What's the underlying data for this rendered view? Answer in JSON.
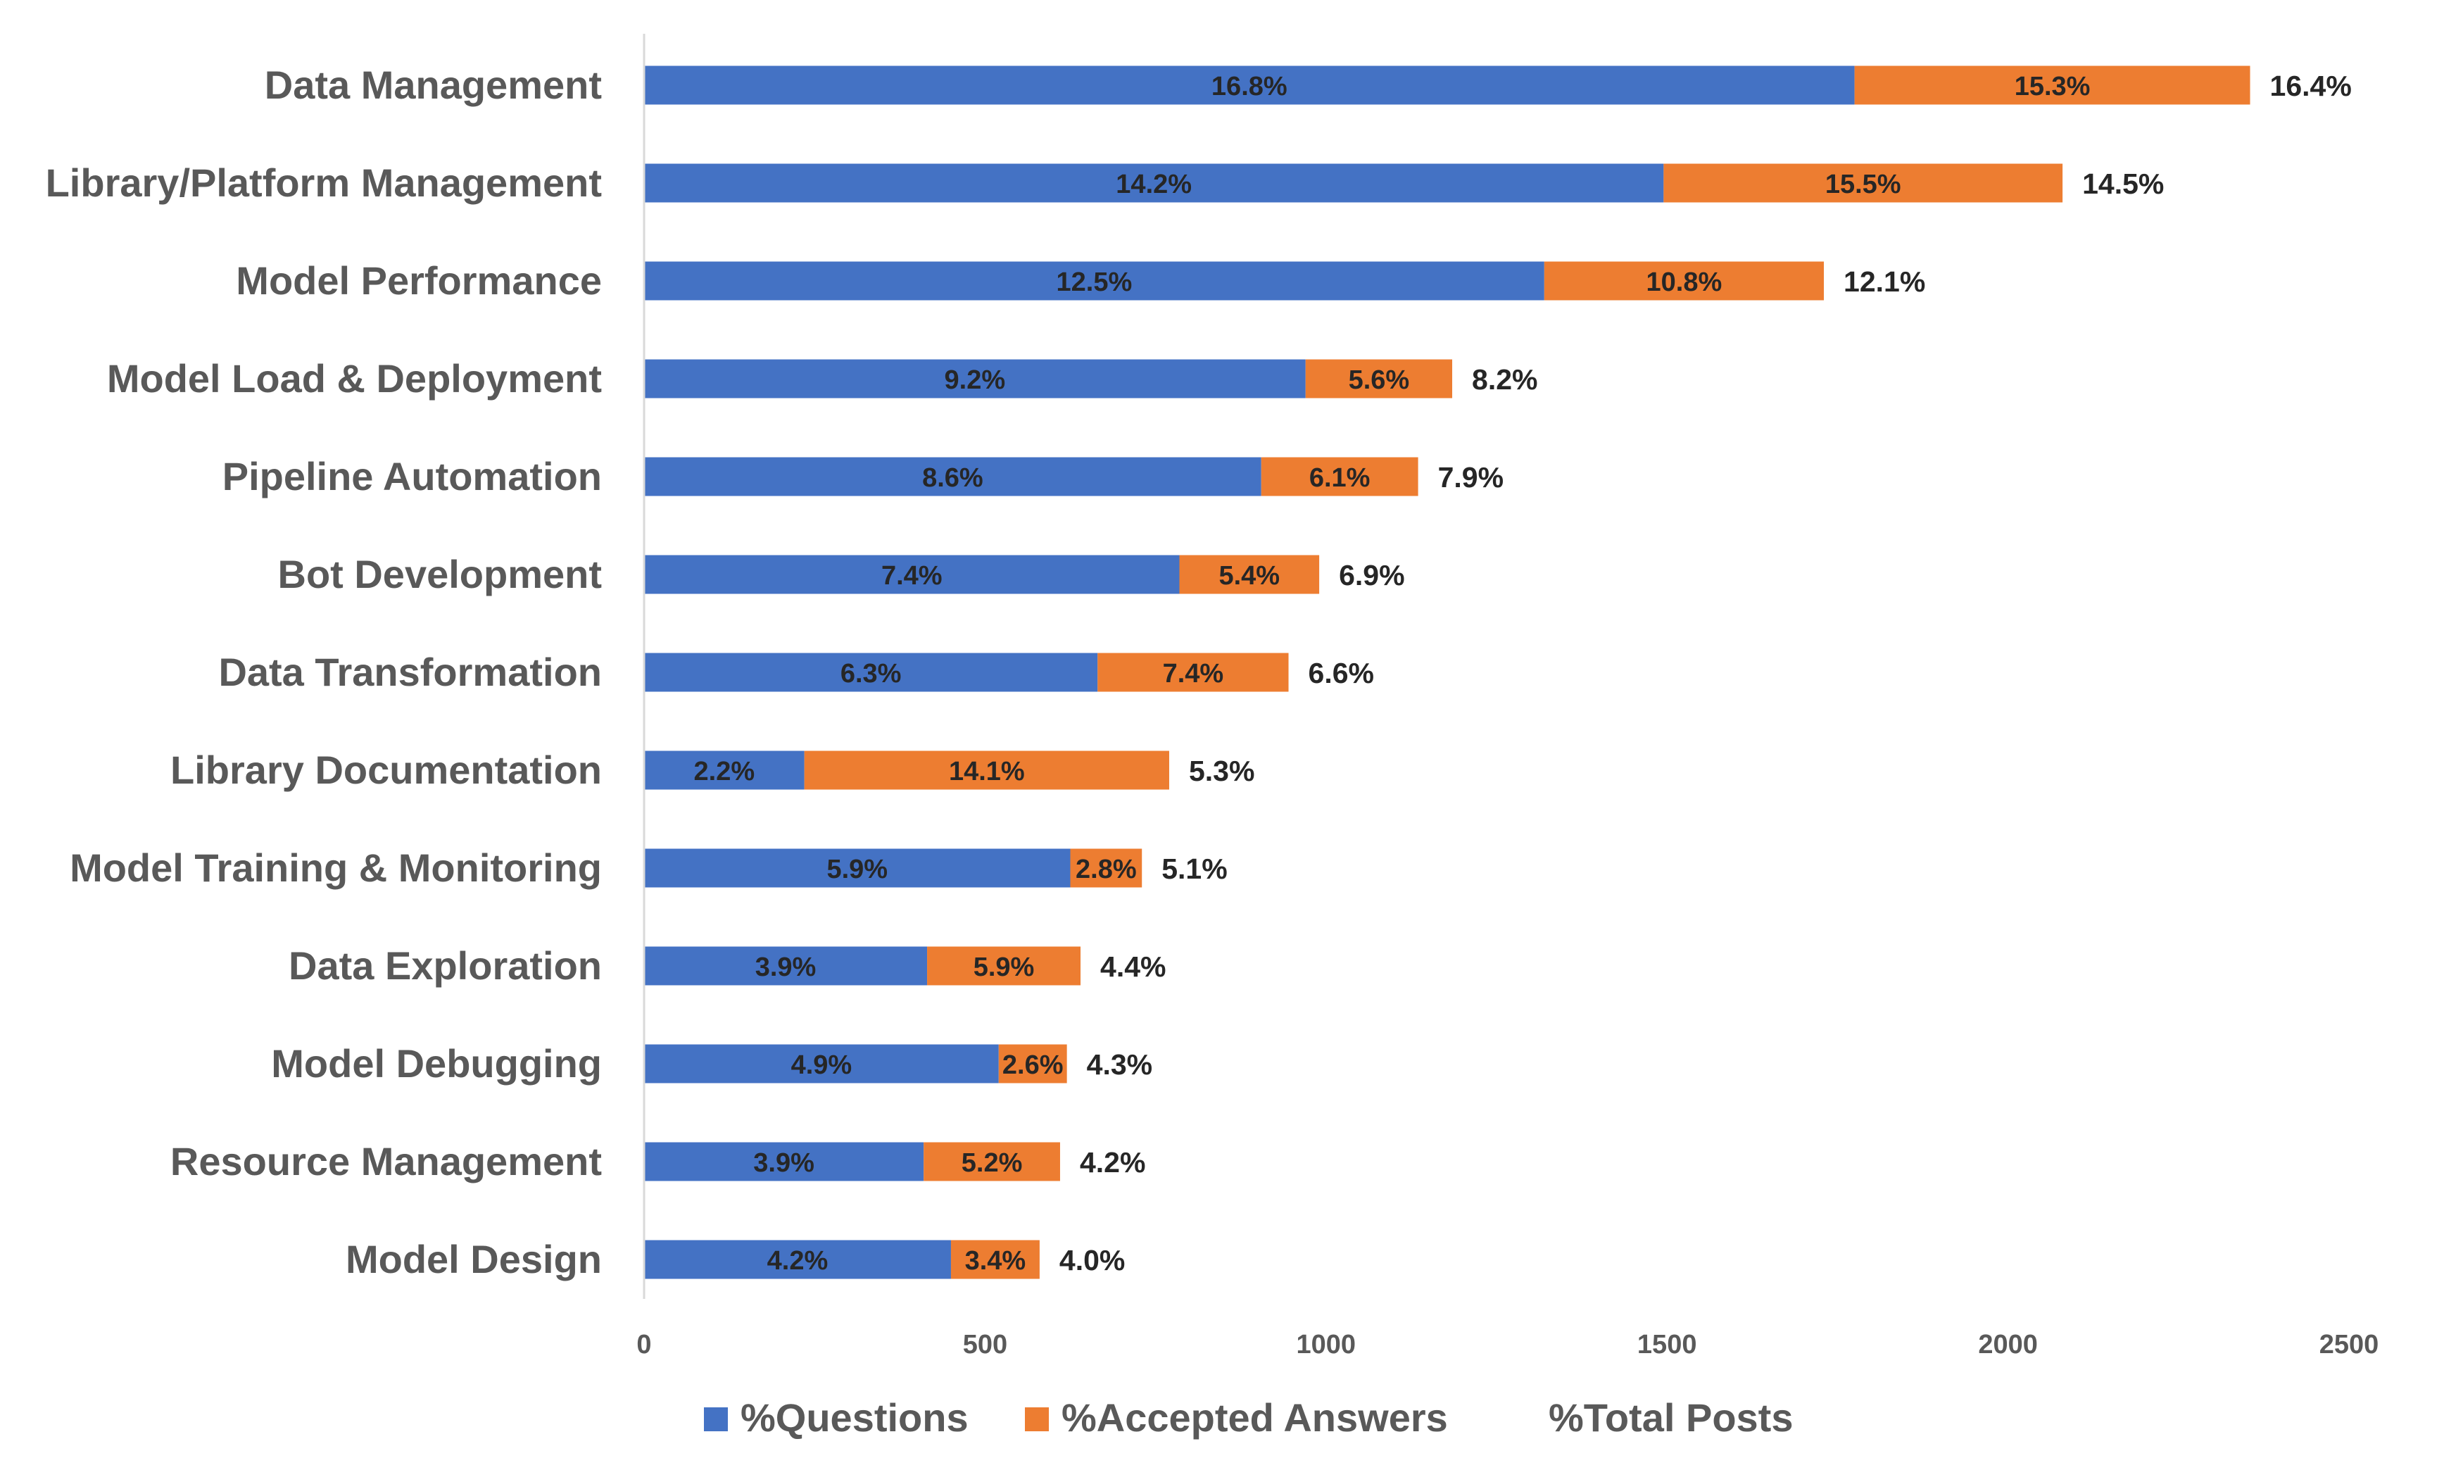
{
  "chart_data": {
    "type": "bar",
    "orientation": "horizontal",
    "stacked": true,
    "categories": [
      "Data Management",
      "Library/Platform Management",
      "Model Performance",
      "Model Load & Deployment",
      "Pipeline Automation",
      "Bot Development",
      "Data Transformation",
      "Library Documentation",
      "Model Training & Monitoring",
      "Data Exploration",
      "Model Debugging",
      "Resource Management",
      "Model Design"
    ],
    "series": [
      {
        "name": "%Questions",
        "color": "#4472C4",
        "values": [
          1775,
          1495,
          1320,
          970,
          905,
          785,
          665,
          235,
          625,
          415,
          520,
          410,
          450
        ],
        "labels": [
          "16.8%",
          "14.2%",
          "12.5%",
          "9.2%",
          "8.6%",
          "7.4%",
          "6.3%",
          "2.2%",
          "5.9%",
          "3.9%",
          "4.9%",
          "3.9%",
          "4.2%"
        ]
      },
      {
        "name": "%Accepted Answers",
        "color": "#ED7D31",
        "values": [
          580,
          585,
          410,
          215,
          230,
          205,
          280,
          535,
          105,
          225,
          100,
          200,
          130
        ],
        "labels": [
          "15.3%",
          "15.5%",
          "10.8%",
          "5.6%",
          "6.1%",
          "5.4%",
          "7.4%",
          "14.1%",
          "2.8%",
          "5.9%",
          "2.6%",
          "5.2%",
          "3.4%"
        ]
      },
      {
        "name": "%Total Posts",
        "color": "#A5A5A5",
        "values": [
          0,
          0,
          0,
          0,
          0,
          0,
          0,
          0,
          0,
          0,
          0,
          0,
          0
        ],
        "labels": [
          "16.4%",
          "14.5%",
          "12.1%",
          "8.2%",
          "7.9%",
          "6.9%",
          "6.6%",
          "5.3%",
          "5.1%",
          "4.4%",
          "4.3%",
          "4.2%",
          "4.0%"
        ]
      }
    ],
    "xlim": [
      0,
      2500
    ],
    "xticks": [
      "0",
      "500",
      "1000",
      "1500",
      "2000",
      "2500"
    ],
    "xtick_values": [
      0,
      500,
      1000,
      1500,
      2000,
      2500
    ],
    "legend_position": "bottom",
    "grid": false
  }
}
